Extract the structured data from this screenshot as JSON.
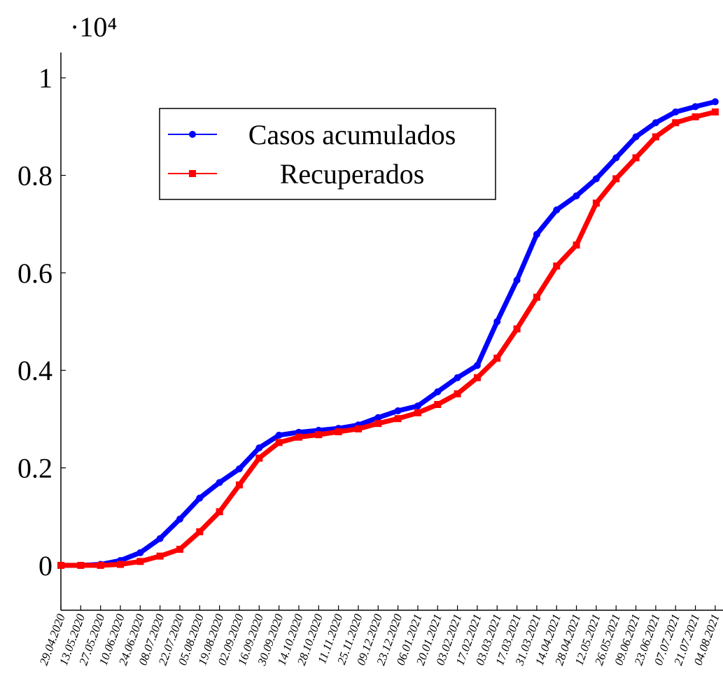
{
  "chart_data": {
    "type": "line",
    "y_scale_label": "·10⁴",
    "categories": [
      "29.04.2020",
      "13.05.2020",
      "27.05.2020",
      "10.06.2020",
      "24.06.2020",
      "08.07.2020",
      "22.07.2020",
      "05.08.2020",
      "19.08.2020",
      "02.09.2020",
      "16.09.2020",
      "30.09.2020",
      "14.10.2020",
      "28.10.2020",
      "11.11.2020",
      "25.11.2020",
      "09.12.2020",
      "23.12.2020",
      "06.01.2021",
      "20.01.2021",
      "03.02.2021",
      "17.02.2021",
      "03.03.2021",
      "17.03.2021",
      "31.03.2021",
      "14.04.2021",
      "28.04.2021",
      "12.05.2021",
      "26.05.2021",
      "09.06.2021",
      "23.06.2021",
      "07.07.2021",
      "21.07.2021",
      "04.08.2021"
    ],
    "series": [
      {
        "name": "Casos acumulados",
        "color": "#0000ff",
        "marker": "circle",
        "values": [
          0,
          0,
          0.002,
          0.01,
          0.026,
          0.055,
          0.095,
          0.138,
          0.17,
          0.198,
          0.241,
          0.267,
          0.273,
          0.277,
          0.281,
          0.288,
          0.303,
          0.317,
          0.327,
          0.356,
          0.385,
          0.41,
          0.5,
          0.585,
          0.679,
          0.729,
          0.758,
          0.793,
          0.836,
          0.879,
          0.908,
          0.93,
          0.941,
          0.951
        ]
      },
      {
        "name": "Recuperados",
        "color": "#ff0000",
        "marker": "square",
        "values": [
          0,
          0,
          0,
          0.002,
          0.008,
          0.019,
          0.033,
          0.069,
          0.11,
          0.165,
          0.22,
          0.252,
          0.263,
          0.268,
          0.274,
          0.28,
          0.291,
          0.301,
          0.313,
          0.33,
          0.352,
          0.385,
          0.425,
          0.485,
          0.55,
          0.614,
          0.657,
          0.743,
          0.793,
          0.836,
          0.879,
          0.908,
          0.92,
          0.93
        ]
      }
    ],
    "ylim": [
      -0.092,
      1.052
    ],
    "yticks": [
      0,
      0.2,
      0.4,
      0.6,
      0.8,
      1
    ],
    "legend": "upper-left"
  }
}
